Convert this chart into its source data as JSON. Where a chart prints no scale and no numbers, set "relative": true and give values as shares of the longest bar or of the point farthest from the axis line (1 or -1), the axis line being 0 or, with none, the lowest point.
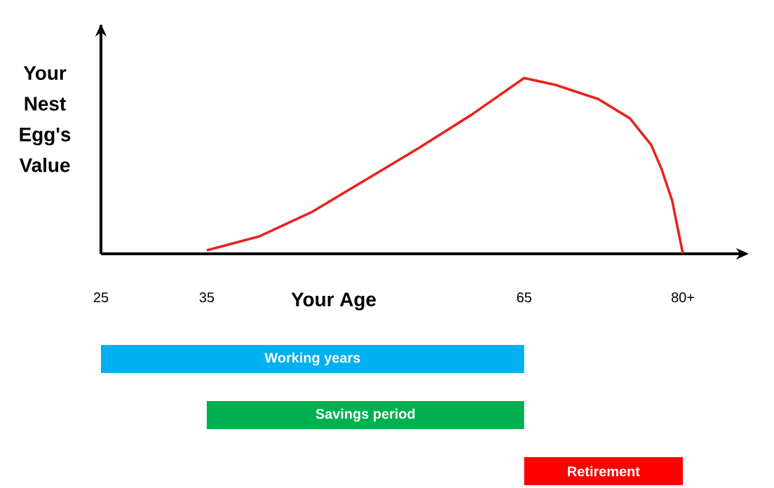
{
  "chart_data": [
    {
      "type": "line",
      "relative": true,
      "xlabel": "Your Age",
      "ylabel": "Your Nest Egg's Value",
      "x": [
        35,
        40,
        45,
        50,
        55,
        60,
        65,
        68,
        72,
        75,
        77,
        78,
        79,
        80
      ],
      "series": [
        {
          "color": "#e8231f",
          "values": [
            0.02,
            0.1,
            0.24,
            0.42,
            0.6,
            0.79,
            1.0,
            0.96,
            0.88,
            0.77,
            0.62,
            0.48,
            0.3,
            0.0
          ]
        }
      ],
      "xlim": [
        25,
        80
      ],
      "xticks": [
        25,
        35,
        65,
        {
          "value": 80,
          "label": "80+"
        }
      ]
    },
    {
      "type": "bar",
      "orientation": "horizontal",
      "tick_labels": false,
      "categories": [
        "Working years",
        "Savings period",
        "Retirement"
      ],
      "base": [
        25,
        35,
        65
      ],
      "values": [
        40,
        30,
        15
      ],
      "colors": [
        "#00b0f0",
        "#00b050",
        "#ff0000"
      ],
      "xlim": [
        25,
        80
      ]
    }
  ]
}
